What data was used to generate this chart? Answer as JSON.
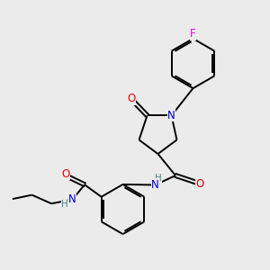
{
  "background_color": "#ebebeb",
  "bond_color": "#000000",
  "atom_colors": {
    "N": "#0000cc",
    "O": "#ee0000",
    "F": "#ee00ee",
    "NH_color": "#4a8888",
    "C": "#000000"
  },
  "figsize": [
    3.0,
    3.0
  ],
  "dpi": 100
}
